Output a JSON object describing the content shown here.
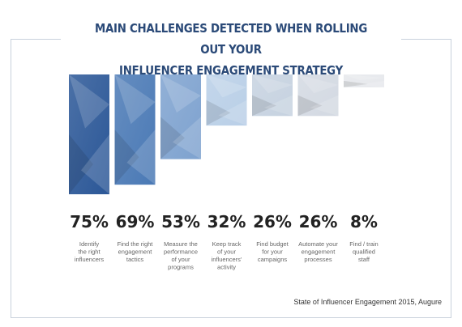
{
  "header": {
    "title_line1": "MAIN CHALLENGES DETECTED WHEN ROLLING OUT YOUR",
    "title_line2": "INFLUENCER ENGAGEMENT STRATEGY"
  },
  "source": "State of Influencer Engagement 2015, Augure",
  "chart_data": {
    "type": "bar",
    "title": "MAIN CHALLENGES DETECTED WHEN ROLLING OUT YOUR INFLUENCER ENGAGEMENT STRATEGY",
    "xlabel": "",
    "ylabel": "",
    "ylim": [
      0,
      75
    ],
    "grid": false,
    "value_labels": [
      "75%",
      "69%",
      "53%",
      "32%",
      "26%",
      "26%",
      "8%"
    ],
    "values": [
      75,
      69,
      53,
      32,
      26,
      26,
      8
    ],
    "categories": [
      [
        "Identify",
        "the right",
        "influencers"
      ],
      [
        "Find the right",
        "engagement",
        "tactics"
      ],
      [
        "Measure the",
        "performance",
        "of your",
        "programs"
      ],
      [
        "Keep track",
        "of your",
        "influencers'",
        "activity"
      ],
      [
        "Find budget",
        "for your",
        "campaigns"
      ],
      [
        "Automate your",
        "engagement",
        "processes"
      ],
      [
        "Find / train",
        "qualified",
        "staff"
      ]
    ],
    "colors": [
      "#2b5797",
      "#4a79b5",
      "#7ea2cf",
      "#b9cfe7",
      "#c6d2e0",
      "#d3d9e2",
      "#e6e8ec"
    ]
  }
}
